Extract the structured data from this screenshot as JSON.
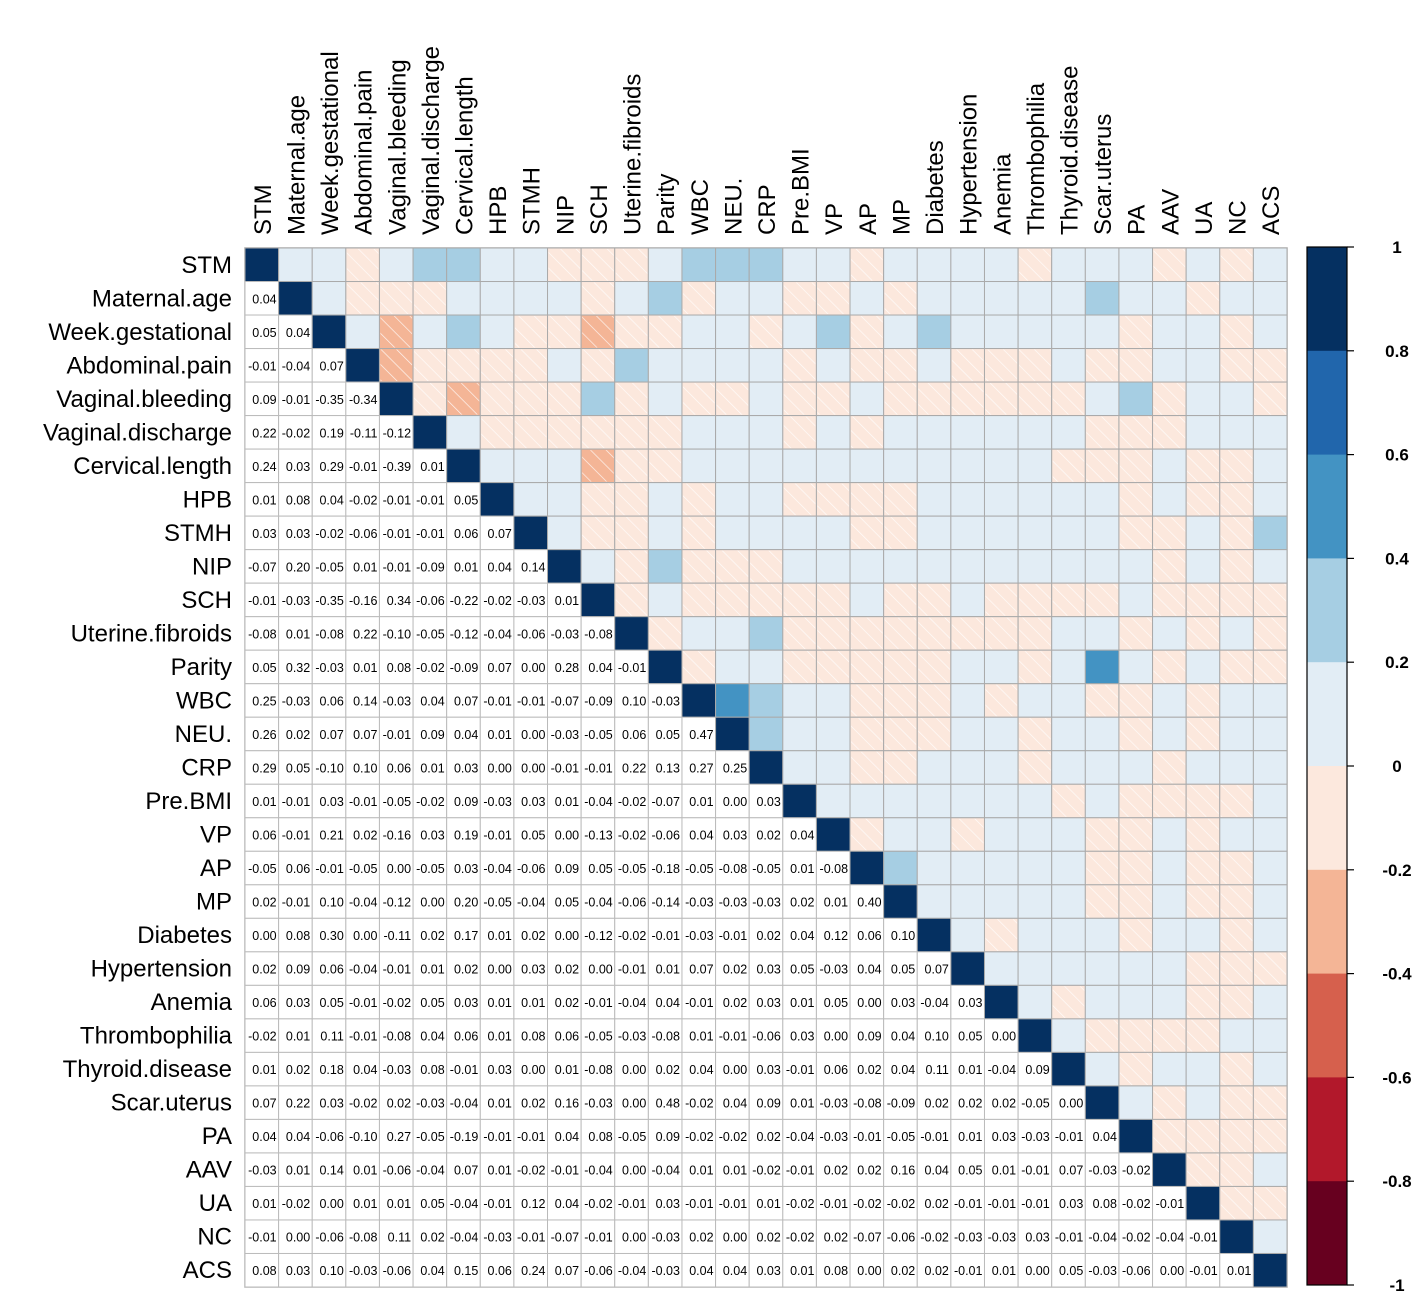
{
  "chart_data": {
    "type": "heatmap",
    "title": "",
    "variables": [
      "STM",
      "Maternal.age",
      "Week.gestational",
      "Abdominal.pain",
      "Vaginal.bleeding",
      "Vaginal.discharge",
      "Cervical.length",
      "HPB",
      "STMH",
      "NIP",
      "SCH",
      "Uterine.fibroids",
      "Parity",
      "WBC",
      "NEU.",
      "CRP",
      "Pre.BMI",
      "VP",
      "AP",
      "MP",
      "Diabetes",
      "Hypertension",
      "Anemia",
      "Thrombophilia",
      "Thyroid.disease",
      "Scar.uterus",
      "PA",
      "AAV",
      "UA",
      "NC",
      "ACS"
    ],
    "lower_triangle": [
      [],
      [
        0.04
      ],
      [
        0.05,
        0.04
      ],
      [
        -0.01,
        -0.04,
        0.07
      ],
      [
        0.09,
        -0.01,
        -0.35,
        -0.34
      ],
      [
        0.22,
        -0.02,
        0.19,
        -0.11,
        -0.12
      ],
      [
        0.24,
        0.03,
        0.29,
        -0.01,
        -0.39,
        0.01
      ],
      [
        0.01,
        0.08,
        0.04,
        -0.02,
        -0.01,
        -0.01,
        0.05
      ],
      [
        0.03,
        0.03,
        -0.02,
        -0.06,
        -0.01,
        -0.01,
        0.06,
        0.07
      ],
      [
        -0.07,
        0.2,
        -0.05,
        0.01,
        -0.01,
        -0.09,
        0.01,
        0.04,
        0.14
      ],
      [
        -0.01,
        -0.03,
        -0.35,
        -0.16,
        0.34,
        -0.06,
        -0.22,
        -0.02,
        -0.03,
        0.01
      ],
      [
        -0.08,
        0.01,
        -0.08,
        0.22,
        -0.1,
        -0.05,
        -0.12,
        -0.04,
        -0.06,
        -0.03,
        -0.08
      ],
      [
        0.05,
        0.32,
        -0.03,
        0.01,
        0.08,
        -0.02,
        -0.09,
        0.07,
        0.0,
        0.28,
        0.04,
        -0.01
      ],
      [
        0.25,
        -0.03,
        0.06,
        0.14,
        -0.03,
        0.04,
        0.07,
        -0.01,
        -0.01,
        -0.07,
        -0.09,
        0.1,
        -0.03
      ],
      [
        0.26,
        0.02,
        0.07,
        0.07,
        -0.01,
        0.09,
        0.04,
        0.01,
        0.0,
        -0.03,
        -0.05,
        0.06,
        0.05,
        0.47
      ],
      [
        0.29,
        0.05,
        -0.1,
        0.1,
        0.06,
        0.01,
        0.03,
        0.0,
        0.0,
        -0.01,
        -0.01,
        0.22,
        0.13,
        0.27,
        0.25
      ],
      [
        0.01,
        -0.01,
        0.03,
        -0.01,
        -0.05,
        -0.02,
        0.09,
        -0.03,
        0.03,
        0.01,
        -0.04,
        -0.02,
        -0.07,
        0.01,
        0.0,
        0.03
      ],
      [
        0.06,
        -0.01,
        0.21,
        0.02,
        -0.16,
        0.03,
        0.19,
        -0.01,
        0.05,
        0.0,
        -0.13,
        -0.02,
        -0.06,
        0.04,
        0.03,
        0.02,
        0.04
      ],
      [
        -0.05,
        0.06,
        -0.01,
        -0.05,
        0.0,
        -0.05,
        0.03,
        -0.04,
        -0.06,
        0.09,
        0.05,
        -0.05,
        -0.18,
        -0.05,
        -0.08,
        -0.05,
        0.01,
        -0.08
      ],
      [
        0.02,
        -0.01,
        0.1,
        -0.04,
        -0.12,
        0.0,
        0.2,
        -0.05,
        -0.04,
        0.05,
        -0.04,
        -0.06,
        -0.14,
        -0.03,
        -0.03,
        -0.03,
        0.02,
        0.01,
        0.4
      ],
      [
        0.0,
        0.08,
        0.3,
        0.0,
        -0.11,
        0.02,
        0.17,
        0.01,
        0.02,
        0.0,
        -0.12,
        -0.02,
        -0.01,
        -0.03,
        -0.01,
        0.02,
        0.04,
        0.12,
        0.06,
        0.1
      ],
      [
        0.02,
        0.09,
        0.06,
        -0.04,
        -0.01,
        0.01,
        0.02,
        0.0,
        0.03,
        0.02,
        0.0,
        -0.01,
        0.01,
        0.07,
        0.02,
        0.03,
        0.05,
        -0.03,
        0.04,
        0.05,
        0.07
      ],
      [
        0.06,
        0.03,
        0.05,
        -0.01,
        -0.02,
        0.05,
        0.03,
        0.01,
        0.01,
        0.02,
        -0.01,
        -0.04,
        0.04,
        -0.01,
        0.02,
        0.03,
        0.01,
        0.05,
        0.0,
        0.03,
        -0.04,
        0.03
      ],
      [
        -0.02,
        0.01,
        0.11,
        -0.01,
        -0.08,
        0.04,
        0.06,
        0.01,
        0.08,
        0.06,
        -0.05,
        -0.03,
        -0.08,
        0.01,
        -0.01,
        -0.06,
        0.03,
        0.0,
        0.09,
        0.04,
        0.1,
        0.05,
        0.0
      ],
      [
        0.01,
        0.02,
        0.18,
        0.04,
        -0.03,
        0.08,
        -0.01,
        0.03,
        0.0,
        0.01,
        -0.08,
        0.0,
        0.02,
        0.04,
        0.0,
        0.03,
        -0.01,
        0.06,
        0.02,
        0.04,
        0.11,
        0.01,
        -0.04,
        0.09
      ],
      [
        0.07,
        0.22,
        0.03,
        -0.02,
        0.02,
        -0.03,
        -0.04,
        0.01,
        0.02,
        0.16,
        -0.03,
        0.0,
        0.48,
        -0.02,
        0.04,
        0.09,
        0.01,
        -0.03,
        -0.08,
        -0.09,
        0.02,
        0.02,
        0.02,
        -0.05,
        0.0
      ],
      [
        0.04,
        0.04,
        -0.06,
        -0.1,
        0.27,
        -0.05,
        -0.19,
        -0.01,
        -0.01,
        0.04,
        0.08,
        -0.05,
        0.09,
        -0.02,
        -0.02,
        0.02,
        -0.04,
        -0.03,
        -0.01,
        -0.05,
        -0.01,
        0.01,
        0.03,
        -0.03,
        -0.01,
        0.04
      ],
      [
        -0.03,
        0.01,
        0.14,
        0.01,
        -0.06,
        -0.04,
        0.07,
        0.01,
        -0.02,
        -0.01,
        -0.04,
        0.0,
        -0.04,
        0.01,
        0.01,
        -0.02,
        -0.01,
        0.02,
        0.02,
        0.16,
        0.04,
        0.05,
        0.01,
        -0.01,
        0.07,
        -0.03,
        -0.02
      ],
      [
        0.01,
        -0.02,
        0.0,
        0.01,
        0.01,
        0.05,
        -0.04,
        -0.01,
        0.12,
        0.04,
        -0.02,
        -0.01,
        0.03,
        -0.01,
        -0.01,
        0.01,
        -0.02,
        -0.01,
        -0.02,
        -0.02,
        0.02,
        -0.01,
        -0.01,
        -0.01,
        0.03,
        0.08,
        -0.02,
        -0.01
      ],
      [
        -0.01,
        0.0,
        -0.06,
        -0.08,
        0.11,
        0.02,
        -0.04,
        -0.03,
        -0.01,
        -0.07,
        -0.01,
        0.0,
        -0.03,
        0.02,
        0.0,
        0.02,
        -0.02,
        0.02,
        -0.07,
        -0.06,
        -0.02,
        -0.03,
        -0.03,
        0.03,
        -0.01,
        -0.04,
        -0.02,
        -0.04,
        -0.01
      ],
      [
        0.08,
        0.03,
        0.1,
        -0.03,
        -0.06,
        0.04,
        0.15,
        0.06,
        0.24,
        0.07,
        -0.06,
        -0.04,
        -0.03,
        0.04,
        0.04,
        0.03,
        0.01,
        0.08,
        0.0,
        0.02,
        0.02,
        -0.01,
        0.01,
        0.0,
        0.05,
        -0.03,
        -0.06,
        0.0,
        -0.01,
        0.01
      ]
    ],
    "diagonal": 1,
    "lower_display": "number",
    "upper_display": "color",
    "negative_pattern": "hatched",
    "colorbar": {
      "ticks": [
        "1",
        "0.8",
        "0.6",
        "0.4",
        "0.2",
        "0",
        "-0.2",
        "-0.4",
        "-0.6",
        "-0.8",
        "-1"
      ],
      "range": [
        -1,
        1
      ],
      "bins": [
        {
          "from": 0.8,
          "to": 1.0,
          "color": "#053061"
        },
        {
          "from": 0.6,
          "to": 0.8,
          "color": "#2166AC"
        },
        {
          "from": 0.4,
          "to": 0.6,
          "color": "#4393C3"
        },
        {
          "from": 0.2,
          "to": 0.4,
          "color": "#A6CEE3"
        },
        {
          "from": 0.0,
          "to": 0.2,
          "color": "#E2EDF5"
        },
        {
          "from": -0.2,
          "to": 0.0,
          "color": "#FCE8DD"
        },
        {
          "from": -0.4,
          "to": -0.2,
          "color": "#F4B596"
        },
        {
          "from": -0.6,
          "to": -0.4,
          "color": "#D6604D"
        },
        {
          "from": -0.8,
          "to": -0.6,
          "color": "#B2182B"
        },
        {
          "from": -1.0,
          "to": -0.8,
          "color": "#67001F"
        }
      ],
      "placement": "right"
    }
  }
}
